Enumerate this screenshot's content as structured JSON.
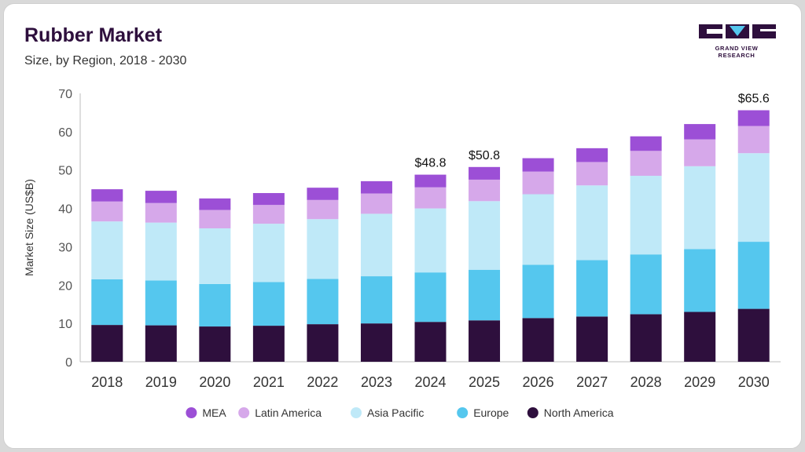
{
  "header": {
    "title": "Rubber Market",
    "subtitle": "Size, by Region, 2018 - 2030"
  },
  "logo": {
    "text": "GRAND VIEW RESEARCH"
  },
  "colors": {
    "brand": "#2e0f3d",
    "MEA": "#9c4fd6",
    "Latin America": "#d6a8ea",
    "Asia Pacific": "#bfe9f8",
    "Europe": "#55c7ee",
    "North America": "#2e0f3d"
  },
  "chart_data": {
    "type": "bar",
    "stacked": true,
    "title": "Rubber Market",
    "subtitle": "Size, by Region, 2018 - 2030",
    "xlabel": "",
    "ylabel": "Market Size (US$B)",
    "ylim": [
      0,
      70
    ],
    "yticks": [
      0,
      10,
      20,
      30,
      40,
      50,
      60,
      70
    ],
    "categories": [
      "2018",
      "2019",
      "2020",
      "2021",
      "2022",
      "2023",
      "2024",
      "2025",
      "2026",
      "2027",
      "2028",
      "2029",
      "2030"
    ],
    "series": [
      {
        "name": "North America",
        "values": [
          9.6,
          9.5,
          9.2,
          9.4,
          9.8,
          10.0,
          10.4,
          10.8,
          11.4,
          11.8,
          12.4,
          13.0,
          13.8
        ]
      },
      {
        "name": "Europe",
        "values": [
          11.9,
          11.7,
          11.1,
          11.4,
          11.8,
          12.3,
          12.9,
          13.2,
          13.9,
          14.7,
          15.6,
          16.4,
          17.5
        ]
      },
      {
        "name": "Asia Pacific",
        "values": [
          15.1,
          15.1,
          14.5,
          15.2,
          15.6,
          16.3,
          16.7,
          17.9,
          18.4,
          19.5,
          20.5,
          21.6,
          23.1
        ]
      },
      {
        "name": "Latin America",
        "values": [
          5.2,
          5.1,
          4.8,
          4.9,
          5.0,
          5.3,
          5.5,
          5.6,
          5.9,
          6.1,
          6.5,
          7.0,
          7.1
        ]
      },
      {
        "name": "MEA",
        "values": [
          3.2,
          3.2,
          3.0,
          3.1,
          3.2,
          3.2,
          3.3,
          3.3,
          3.5,
          3.6,
          3.8,
          4.0,
          4.1
        ]
      }
    ],
    "data_labels": [
      {
        "category": "2024",
        "text": "$48.8"
      },
      {
        "category": "2025",
        "text": "$50.8"
      },
      {
        "category": "2030",
        "text": "$65.6"
      }
    ],
    "legend": {
      "placement": "bottom",
      "items": [
        "MEA",
        "Latin America",
        "Asia Pacific",
        "Europe",
        "North America"
      ]
    },
    "grid": false
  }
}
